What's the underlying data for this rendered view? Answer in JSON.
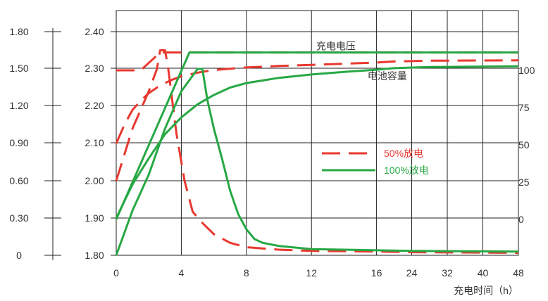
{
  "chart_data": {
    "type": "line",
    "title": "",
    "xlabel": "充电时间（h）",
    "x_ticks": [
      "0",
      "4",
      "8",
      "12",
      "16",
      "24",
      "32",
      "40",
      "48"
    ],
    "left_axis_1": {
      "label": "",
      "ticks": [
        "1.80",
        "1.50",
        "1.20",
        "0.90",
        "0.60",
        "0.30",
        "0"
      ],
      "range": [
        0,
        1.8
      ]
    },
    "left_axis_2": {
      "label": "",
      "ticks": [
        "2.40",
        "2.30",
        "2.20",
        "2.10",
        "2.00",
        "1.90",
        "1.80"
      ],
      "range": [
        1.8,
        2.4
      ]
    },
    "right_axis": {
      "label": "",
      "ticks": [
        "100",
        "75",
        "50",
        "25",
        "0"
      ],
      "range": [
        -25,
        125
      ]
    },
    "grid": true,
    "legend_position": "center-right",
    "annotations": [
      {
        "text": "充电电压",
        "x": 13.5,
        "voltage": 2.352
      },
      {
        "text": "电池容量",
        "x": 18.5,
        "voltage": 2.272
      }
    ],
    "series": [
      {
        "name": "50%放电",
        "color": "#e8382f",
        "dash": true,
        "curves": [
          {
            "kind": "voltage",
            "points": [
              [
                0,
                2.1
              ],
              [
                0.5,
                2.15
              ],
              [
                1,
                2.19
              ],
              [
                1.5,
                2.215
              ],
              [
                2,
                2.235
              ],
              [
                2.5,
                2.25
              ],
              [
                3,
                2.262
              ],
              [
                3.5,
                2.272
              ],
              [
                4,
                2.28
              ],
              [
                5,
                2.29
              ],
              [
                6,
                2.297
              ],
              [
                8,
                2.304
              ],
              [
                10,
                2.308
              ],
              [
                12,
                2.311
              ],
              [
                14,
                2.314
              ],
              [
                16,
                2.317
              ],
              [
                20,
                2.32
              ],
              [
                28,
                2.322
              ],
              [
                48,
                2.323
              ]
            ]
          },
          {
            "kind": "current",
            "points": [
              [
                0,
                0.6
              ],
              [
                1,
                1.02
              ],
              [
                2,
                1.32
              ],
              [
                2.5,
                1.5
              ],
              [
                2.7,
                1.65
              ],
              [
                3,
                1.65
              ],
              [
                3.2,
                1.5
              ],
              [
                3.7,
                0.98
              ],
              [
                4.2,
                0.6
              ],
              [
                4.7,
                0.35
              ],
              [
                5.3,
                0.26
              ],
              [
                6,
                0.17
              ],
              [
                7,
                0.1
              ],
              [
                8,
                0.065
              ],
              [
                10,
                0.045
              ],
              [
                12,
                0.035
              ],
              [
                16,
                0.03
              ],
              [
                24,
                0.025
              ],
              [
                48,
                0.02
              ]
            ]
          },
          {
            "kind": "capacity",
            "points": [
              [
                0,
                100
              ],
              [
                1.5,
                100
              ],
              [
                2.7,
                112
              ],
              [
                4.5,
                112
              ],
              [
                16,
                112
              ],
              [
                48,
                112
              ]
            ]
          }
        ]
      },
      {
        "name": "100%放电",
        "color": "#27a844",
        "dash": false,
        "curves": [
          {
            "kind": "voltage",
            "points": [
              [
                0,
                1.9
              ],
              [
                1,
                1.99
              ],
              [
                2,
                2.06
              ],
              [
                3,
                2.125
              ],
              [
                4,
                2.17
              ],
              [
                5,
                2.205
              ],
              [
                6,
                2.23
              ],
              [
                7,
                2.25
              ],
              [
                8,
                2.262
              ],
              [
                10,
                2.276
              ],
              [
                12,
                2.285
              ],
              [
                14,
                2.292
              ],
              [
                16,
                2.298
              ],
              [
                20,
                2.302
              ],
              [
                28,
                2.305
              ],
              [
                48,
                2.307
              ]
            ]
          },
          {
            "kind": "current",
            "points": [
              [
                0,
                0
              ],
              [
                1,
                0.36
              ],
              [
                2,
                0.65
              ],
              [
                3,
                1.02
              ],
              [
                4,
                1.32
              ],
              [
                5,
                1.5
              ],
              [
                5.3,
                1.5
              ],
              [
                5.6,
                1.25
              ],
              [
                6,
                1.02
              ],
              [
                6.5,
                0.78
              ],
              [
                7,
                0.52
              ],
              [
                7.5,
                0.33
              ],
              [
                8,
                0.21
              ],
              [
                8.5,
                0.13
              ],
              [
                9,
                0.1
              ],
              [
                10,
                0.075
              ],
              [
                12,
                0.05
              ],
              [
                16,
                0.04
              ],
              [
                24,
                0.035
              ],
              [
                48,
                0.03
              ]
            ]
          },
          {
            "kind": "capacity",
            "points": [
              [
                0,
                0
              ],
              [
                4.5,
                112
              ],
              [
                16,
                112
              ],
              [
                48,
                112
              ]
            ]
          }
        ]
      }
    ]
  }
}
